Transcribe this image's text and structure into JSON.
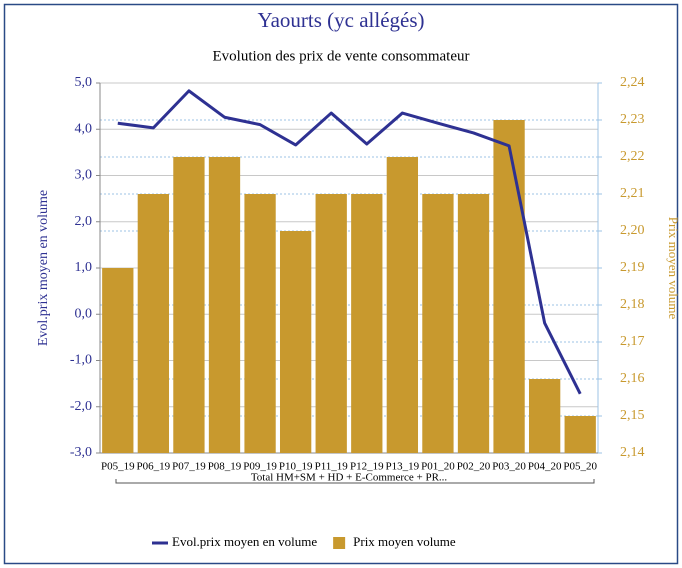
{
  "chart_data": {
    "type": "combo",
    "title": "Yaourts (yc allégés)",
    "subtitle": "Evolution des prix de vente consommateur",
    "ylabel": "Evol.prix moyen en volume",
    "y2label": "Prix moyen volume",
    "group_label": "Total HM+SM + HD + E-Commerce + PR...",
    "categories": [
      "P05_19",
      "P06_19",
      "P07_19",
      "P08_19",
      "P09_19",
      "P10_19",
      "P11_19",
      "P12_19",
      "P13_19",
      "P01_20",
      "P02_20",
      "P03_20",
      "P04_20",
      "P05_20"
    ],
    "series": [
      {
        "name": "Evol.prix moyen en volume",
        "type": "line",
        "axis": "y",
        "color": "#2e3192",
        "values": [
          4.13,
          4.03,
          4.83,
          4.26,
          4.1,
          3.66,
          4.35,
          3.68,
          4.35,
          4.13,
          3.92,
          3.64,
          -0.19,
          -1.72
        ]
      },
      {
        "name": "Prix moyen volume",
        "type": "bar",
        "axis": "y2",
        "color": "#c8992e",
        "values": [
          2.19,
          2.21,
          2.22,
          2.22,
          2.21,
          2.2,
          2.21,
          2.21,
          2.22,
          2.21,
          2.21,
          2.23,
          2.16,
          2.15
        ]
      }
    ],
    "ylim": [
      -3,
      5
    ],
    "yticks": [
      {
        "value": -3,
        "label": "-3,0"
      },
      {
        "value": -2,
        "label": "-2,0"
      },
      {
        "value": -1,
        "label": "-1,0"
      },
      {
        "value": 0,
        "label": "0,0"
      },
      {
        "value": 1,
        "label": "1,0"
      },
      {
        "value": 2,
        "label": "2,0"
      },
      {
        "value": 3,
        "label": "3,0"
      },
      {
        "value": 4,
        "label": "4,0"
      },
      {
        "value": 5,
        "label": "5,0"
      }
    ],
    "y2lim": [
      2.14,
      2.24
    ],
    "y2ticks": [
      {
        "value": 2.14,
        "label": "2,14"
      },
      {
        "value": 2.15,
        "label": "2,15"
      },
      {
        "value": 2.16,
        "label": "2,16"
      },
      {
        "value": 2.17,
        "label": "2,17"
      },
      {
        "value": 2.18,
        "label": "2,18"
      },
      {
        "value": 2.19,
        "label": "2,19"
      },
      {
        "value": 2.2,
        "label": "2,20"
      },
      {
        "value": 2.21,
        "label": "2,21"
      },
      {
        "value": 2.22,
        "label": "2,22"
      },
      {
        "value": 2.23,
        "label": "2,23"
      },
      {
        "value": 2.24,
        "label": "2,24"
      }
    ],
    "grid": true,
    "legend": "bottom"
  }
}
